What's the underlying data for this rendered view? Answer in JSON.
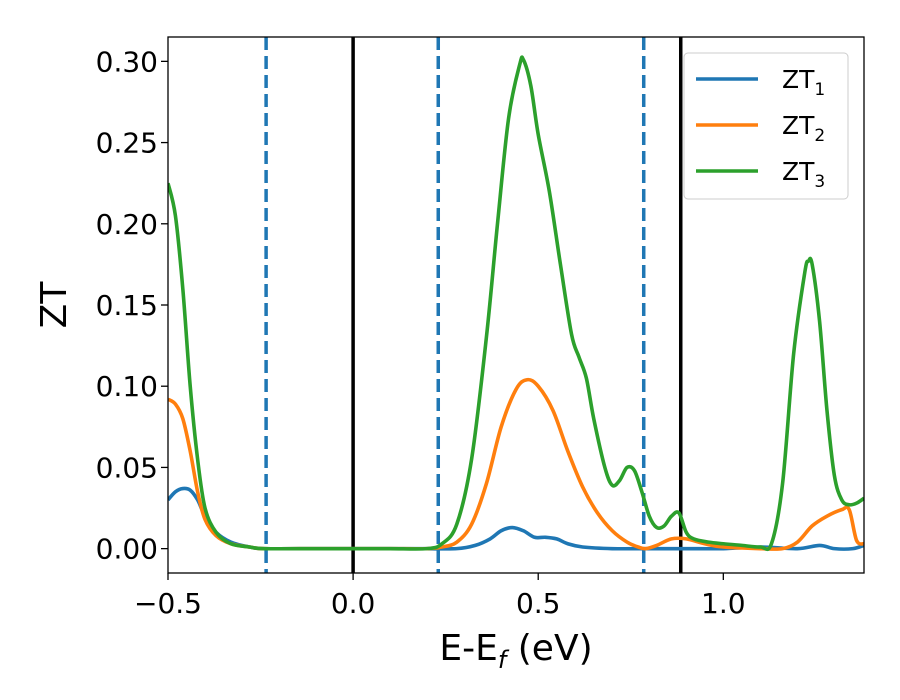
{
  "chart_data": {
    "type": "line",
    "xlabel": "E-E",
    "xlabel_sub": "f",
    "xlabel_unit": " (eV)",
    "ylabel": "ZT",
    "xlim": [
      -0.5,
      1.38
    ],
    "ylim": [
      -0.015,
      0.315
    ],
    "xticks": [
      -0.5,
      0.0,
      0.5,
      1.0
    ],
    "xtick_labels": [
      "−0.5",
      "0.0",
      "0.5",
      "1.0"
    ],
    "yticks": [
      0.0,
      0.05,
      0.1,
      0.15,
      0.2,
      0.25,
      0.3
    ],
    "ytick_labels": [
      "0.00",
      "0.05",
      "0.10",
      "0.15",
      "0.20",
      "0.25",
      "0.30"
    ],
    "grid": false,
    "legend_position": "top-right",
    "vertical_lines": [
      {
        "x": -0.235,
        "color": "#1f77b4",
        "style": "dashed"
      },
      {
        "x": 0.0,
        "color": "#000000",
        "style": "solid"
      },
      {
        "x": 0.23,
        "color": "#1f77b4",
        "style": "dashed"
      },
      {
        "x": 0.785,
        "color": "#1f77b4",
        "style": "dashed"
      },
      {
        "x": 0.885,
        "color": "#000000",
        "style": "solid"
      }
    ],
    "series": [
      {
        "name": "ZT",
        "name_sub": "1",
        "color": "#1f77b4",
        "points": [
          [
            -0.5,
            0.03
          ],
          [
            -0.48,
            0.035
          ],
          [
            -0.46,
            0.037
          ],
          [
            -0.44,
            0.036
          ],
          [
            -0.42,
            0.03
          ],
          [
            -0.4,
            0.02
          ],
          [
            -0.37,
            0.01
          ],
          [
            -0.33,
            0.004
          ],
          [
            -0.28,
            0.001
          ],
          [
            -0.24,
            0.0
          ],
          [
            -0.1,
            0.0
          ],
          [
            0.0,
            0.0
          ],
          [
            0.1,
            0.0
          ],
          [
            0.2,
            0.0
          ],
          [
            0.28,
            0.0
          ],
          [
            0.33,
            0.002
          ],
          [
            0.37,
            0.006
          ],
          [
            0.4,
            0.011
          ],
          [
            0.43,
            0.013
          ],
          [
            0.46,
            0.011
          ],
          [
            0.49,
            0.007
          ],
          [
            0.52,
            0.007
          ],
          [
            0.55,
            0.006
          ],
          [
            0.58,
            0.003
          ],
          [
            0.62,
            0.001
          ],
          [
            0.7,
            0.0
          ],
          [
            0.8,
            0.0
          ],
          [
            0.9,
            0.0
          ],
          [
            1.0,
            0.0
          ],
          [
            1.1,
            0.001
          ],
          [
            1.2,
            0.0
          ],
          [
            1.26,
            0.002
          ],
          [
            1.3,
            0.0
          ],
          [
            1.35,
            0.0
          ],
          [
            1.38,
            0.002
          ]
        ]
      },
      {
        "name": "ZT",
        "name_sub": "2",
        "color": "#ff7f0e",
        "points": [
          [
            -0.5,
            0.092
          ],
          [
            -0.48,
            0.089
          ],
          [
            -0.46,
            0.08
          ],
          [
            -0.44,
            0.06
          ],
          [
            -0.42,
            0.035
          ],
          [
            -0.4,
            0.018
          ],
          [
            -0.37,
            0.008
          ],
          [
            -0.33,
            0.003
          ],
          [
            -0.28,
            0.001
          ],
          [
            -0.24,
            0.0
          ],
          [
            -0.1,
            0.0
          ],
          [
            0.0,
            0.0
          ],
          [
            0.1,
            0.0
          ],
          [
            0.2,
            0.0
          ],
          [
            0.24,
            0.001
          ],
          [
            0.28,
            0.004
          ],
          [
            0.32,
            0.015
          ],
          [
            0.36,
            0.04
          ],
          [
            0.4,
            0.075
          ],
          [
            0.44,
            0.098
          ],
          [
            0.47,
            0.104
          ],
          [
            0.5,
            0.1
          ],
          [
            0.54,
            0.085
          ],
          [
            0.58,
            0.06
          ],
          [
            0.62,
            0.038
          ],
          [
            0.66,
            0.022
          ],
          [
            0.7,
            0.011
          ],
          [
            0.74,
            0.004
          ],
          [
            0.77,
            0.001
          ],
          [
            0.79,
            0.0
          ],
          [
            0.82,
            0.002
          ],
          [
            0.86,
            0.006
          ],
          [
            0.9,
            0.006
          ],
          [
            0.95,
            0.003
          ],
          [
            1.0,
            0.001
          ],
          [
            1.1,
            0.0
          ],
          [
            1.16,
            0.0
          ],
          [
            1.2,
            0.004
          ],
          [
            1.24,
            0.014
          ],
          [
            1.28,
            0.02
          ],
          [
            1.32,
            0.024
          ],
          [
            1.34,
            0.024
          ],
          [
            1.36,
            0.005
          ],
          [
            1.38,
            0.003
          ]
        ]
      },
      {
        "name": "ZT",
        "name_sub": "3",
        "color": "#2ca02c",
        "points": [
          [
            -0.5,
            0.225
          ],
          [
            -0.48,
            0.205
          ],
          [
            -0.46,
            0.16
          ],
          [
            -0.44,
            0.1
          ],
          [
            -0.42,
            0.055
          ],
          [
            -0.4,
            0.025
          ],
          [
            -0.37,
            0.01
          ],
          [
            -0.33,
            0.003
          ],
          [
            -0.28,
            0.001
          ],
          [
            -0.24,
            0.0
          ],
          [
            -0.1,
            0.0
          ],
          [
            0.0,
            0.0
          ],
          [
            0.1,
            0.0
          ],
          [
            0.2,
            0.0
          ],
          [
            0.24,
            0.003
          ],
          [
            0.28,
            0.015
          ],
          [
            0.32,
            0.055
          ],
          [
            0.36,
            0.13
          ],
          [
            0.39,
            0.2
          ],
          [
            0.42,
            0.265
          ],
          [
            0.45,
            0.298
          ],
          [
            0.46,
            0.301
          ],
          [
            0.48,
            0.285
          ],
          [
            0.5,
            0.255
          ],
          [
            0.53,
            0.22
          ],
          [
            0.56,
            0.175
          ],
          [
            0.59,
            0.132
          ],
          [
            0.61,
            0.118
          ],
          [
            0.63,
            0.105
          ],
          [
            0.65,
            0.08
          ],
          [
            0.68,
            0.05
          ],
          [
            0.7,
            0.039
          ],
          [
            0.72,
            0.042
          ],
          [
            0.74,
            0.05
          ],
          [
            0.76,
            0.048
          ],
          [
            0.78,
            0.035
          ],
          [
            0.8,
            0.02
          ],
          [
            0.82,
            0.013
          ],
          [
            0.84,
            0.014
          ],
          [
            0.86,
            0.02
          ],
          [
            0.88,
            0.022
          ],
          [
            0.9,
            0.01
          ],
          [
            0.92,
            0.006
          ],
          [
            0.96,
            0.004
          ],
          [
            1.0,
            0.003
          ],
          [
            1.05,
            0.002
          ],
          [
            1.1,
            0.001
          ],
          [
            1.13,
            0.003
          ],
          [
            1.16,
            0.04
          ],
          [
            1.19,
            0.12
          ],
          [
            1.22,
            0.17
          ],
          [
            1.23,
            0.177
          ],
          [
            1.24,
            0.175
          ],
          [
            1.26,
            0.14
          ],
          [
            1.28,
            0.085
          ],
          [
            1.3,
            0.045
          ],
          [
            1.32,
            0.03
          ],
          [
            1.34,
            0.027
          ],
          [
            1.36,
            0.028
          ],
          [
            1.38,
            0.031
          ]
        ]
      }
    ]
  }
}
